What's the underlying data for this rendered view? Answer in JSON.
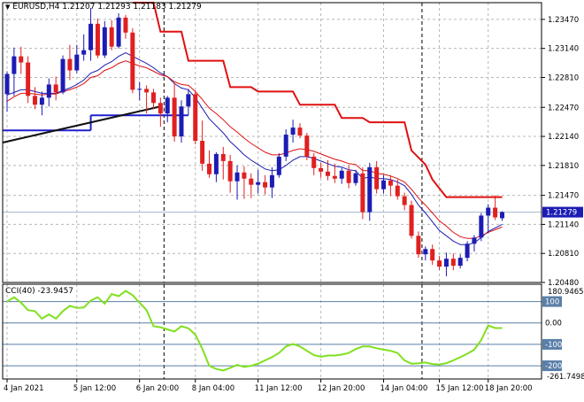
{
  "header": {
    "symbol": "EURUSD,H4",
    "ohlc": [
      "1.21207",
      "1.21293",
      "1.21183",
      "1.21279"
    ]
  },
  "price_axis": {
    "ticks": [
      "1.23470",
      "1.23140",
      "1.22810",
      "1.22470",
      "1.22140",
      "1.21810",
      "1.21470",
      "1.21140",
      "1.20810",
      "1.20480"
    ],
    "current_price": "1.21279"
  },
  "cci_panel": {
    "title": "CCI(40) -23.9457",
    "scale_max": "180.9465",
    "scale_min": "-261.7498",
    "levels": [
      "100",
      "0.00",
      "-100",
      "-200"
    ]
  },
  "time_axis": {
    "labels": [
      "4 Jan 2021",
      "5 Jan 12:00",
      "6 Jan 20:00",
      "8 Jan 04:00",
      "11 Jan 12:00",
      "12 Jan 20:00",
      "14 Jan 04:00",
      "15 Jan 12:00",
      "18 Jan 20:00"
    ]
  },
  "colors": {
    "bull": "#1c1cb4",
    "bear": "#e02020",
    "channel": "#e01010",
    "ma_fast": "#e01010",
    "ma_slow": "#1c1cb4",
    "trendline": "#101010",
    "support": "#2020d0",
    "cci": "#80e020",
    "grid": "#b8b8b8",
    "price_tag": "#1c1cb4"
  },
  "chart_data": {
    "type": "candlestick",
    "series_name": "EURUSD,H4",
    "ylim": [
      1.2048,
      1.2366
    ],
    "candles": [
      [
        1.2262,
        1.2288,
        1.2242,
        1.2285
      ],
      [
        1.2285,
        1.2315,
        1.226,
        1.2305
      ],
      [
        1.2305,
        1.2316,
        1.2285,
        1.2298
      ],
      [
        1.2298,
        1.2305,
        1.2252,
        1.226
      ],
      [
        1.226,
        1.227,
        1.2245,
        1.225
      ],
      [
        1.225,
        1.2265,
        1.2238,
        1.2258
      ],
      [
        1.2258,
        1.228,
        1.2248,
        1.2273
      ],
      [
        1.2273,
        1.2282,
        1.2255,
        1.2264
      ],
      [
        1.2264,
        1.2306,
        1.2262,
        1.2302
      ],
      [
        1.2302,
        1.2318,
        1.2278,
        1.2289
      ],
      [
        1.2289,
        1.2318,
        1.2286,
        1.2307
      ],
      [
        1.2307,
        1.233,
        1.23,
        1.2312
      ],
      [
        1.2312,
        1.236,
        1.23,
        1.2342
      ],
      [
        1.2342,
        1.2348,
        1.2303,
        1.2306
      ],
      [
        1.2306,
        1.2345,
        1.2303,
        1.2338
      ],
      [
        1.2338,
        1.2346,
        1.2312,
        1.2316
      ],
      [
        1.2316,
        1.2354,
        1.2314,
        1.2349
      ],
      [
        1.2349,
        1.2352,
        1.2325,
        1.2332
      ],
      [
        1.2332,
        1.2337,
        1.2263,
        1.2267
      ],
      [
        1.2267,
        1.2276,
        1.2255,
        1.2268
      ],
      [
        1.2268,
        1.2272,
        1.224,
        1.2264
      ],
      [
        1.2264,
        1.2268,
        1.2245,
        1.2252
      ],
      [
        1.2252,
        1.2258,
        1.2225,
        1.224
      ],
      [
        1.224,
        1.226,
        1.223,
        1.2258
      ],
      [
        1.2258,
        1.2275,
        1.2208,
        1.2214
      ],
      [
        1.2214,
        1.2255,
        1.2207,
        1.2248
      ],
      [
        1.2248,
        1.2268,
        1.2238,
        1.2262
      ],
      [
        1.2262,
        1.2266,
        1.2205,
        1.2209
      ],
      [
        1.2209,
        1.2232,
        1.2175,
        1.2183
      ],
      [
        1.2183,
        1.2198,
        1.2167,
        1.2171
      ],
      [
        1.2171,
        1.2196,
        1.2162,
        1.2194
      ],
      [
        1.2194,
        1.2202,
        1.2165,
        1.2186
      ],
      [
        1.2186,
        1.2193,
        1.215,
        1.2163
      ],
      [
        1.2163,
        1.2181,
        1.2142,
        1.2173
      ],
      [
        1.2173,
        1.218,
        1.2143,
        1.2166
      ],
      [
        1.2166,
        1.2172,
        1.2144,
        1.2159
      ],
      [
        1.2159,
        1.2176,
        1.2149,
        1.2162
      ],
      [
        1.2162,
        1.217,
        1.2148,
        1.2156
      ],
      [
        1.2156,
        1.2179,
        1.2144,
        1.217
      ],
      [
        1.217,
        1.2195,
        1.2167,
        1.2191
      ],
      [
        1.2191,
        1.2222,
        1.2186,
        1.2216
      ],
      [
        1.2216,
        1.2233,
        1.2207,
        1.2224
      ],
      [
        1.2224,
        1.2229,
        1.2212,
        1.2215
      ],
      [
        1.2215,
        1.2218,
        1.2187,
        1.2191
      ],
      [
        1.2191,
        1.2195,
        1.217,
        1.2178
      ],
      [
        1.2178,
        1.2184,
        1.2167,
        1.2174
      ],
      [
        1.2174,
        1.2187,
        1.2164,
        1.2169
      ],
      [
        1.2169,
        1.2183,
        1.2161,
        1.2166
      ],
      [
        1.2166,
        1.2178,
        1.216,
        1.2175
      ],
      [
        1.2175,
        1.2181,
        1.2155,
        1.2161
      ],
      [
        1.2161,
        1.2176,
        1.2158,
        1.2172
      ],
      [
        1.2172,
        1.2179,
        1.212,
        1.2128
      ],
      [
        1.2128,
        1.2184,
        1.2118,
        1.2179
      ],
      [
        1.2179,
        1.2186,
        1.2149,
        1.2154
      ],
      [
        1.2154,
        1.217,
        1.2149,
        1.2164
      ],
      [
        1.2164,
        1.217,
        1.2146,
        1.2158
      ],
      [
        1.2158,
        1.2165,
        1.2142,
        1.2146
      ],
      [
        1.2146,
        1.215,
        1.213,
        1.2136
      ],
      [
        1.2136,
        1.2141,
        1.2098,
        1.2101
      ],
      [
        1.2101,
        1.2106,
        1.2076,
        1.208
      ],
      [
        1.208,
        1.2089,
        1.2073,
        1.2086
      ],
      [
        1.2086,
        1.2091,
        1.2068,
        1.2073
      ],
      [
        1.2073,
        1.2078,
        1.2062,
        1.2066
      ],
      [
        1.2066,
        1.2082,
        1.2055,
        1.2075
      ],
      [
        1.2075,
        1.2081,
        1.2062,
        1.2067
      ],
      [
        1.2067,
        1.208,
        1.2064,
        1.2076
      ],
      [
        1.2076,
        1.2095,
        1.2072,
        1.2092
      ],
      [
        1.2092,
        1.2102,
        1.2083,
        1.2099
      ],
      [
        1.2099,
        1.2127,
        1.2095,
        1.2124
      ],
      [
        1.2124,
        1.2137,
        1.2104,
        1.2133
      ],
      [
        1.2133,
        1.2147,
        1.2119,
        1.2122
      ],
      [
        1.2121,
        1.2129,
        1.2118,
        1.2128
      ]
    ],
    "ma_fast": [
      1.2254,
      1.2259,
      1.2263,
      1.2263,
      1.2262,
      1.2261,
      1.2262,
      1.2262,
      1.2265,
      1.2267,
      1.227,
      1.2274,
      1.2281,
      1.2283,
      1.2289,
      1.2292,
      1.2297,
      1.23,
      1.2297,
      1.2294,
      1.2292,
      1.2288,
      1.2284,
      1.2282,
      1.2276,
      1.2273,
      1.2272,
      1.2265,
      1.2256,
      1.2246,
      1.224,
      1.2233,
      1.2225,
      1.2219,
      1.2212,
      1.2206,
      1.2201,
      1.2196,
      1.2193,
      1.2193,
      1.2195,
      1.2198,
      1.22,
      1.2199,
      1.2197,
      1.2194,
      1.2191,
      1.2188,
      1.2186,
      1.2183,
      1.2182,
      1.2175,
      1.2175,
      1.2172,
      1.2171,
      1.2169,
      1.2166,
      1.2162,
      1.2154,
      1.2144,
      1.2136,
      1.2127,
      1.2118,
      1.2112,
      1.2105,
      1.21,
      1.2098,
      1.2098,
      1.2101,
      1.2105,
      1.2108,
      1.2111
    ],
    "ma_slow": [
      1.2261,
      1.2264,
      1.2267,
      1.2267,
      1.2265,
      1.2263,
      1.2263,
      1.2263,
      1.2266,
      1.2269,
      1.2273,
      1.2278,
      1.2286,
      1.2289,
      1.2295,
      1.2299,
      1.2305,
      1.2309,
      1.2305,
      1.2301,
      1.2297,
      1.2292,
      1.2286,
      1.2282,
      1.2274,
      1.2269,
      1.2267,
      1.2258,
      1.2246,
      1.2234,
      1.2226,
      1.2218,
      1.2208,
      1.2201,
      1.2193,
      1.2187,
      1.2182,
      1.2177,
      1.2175,
      1.2176,
      1.2181,
      1.2187,
      1.2191,
      1.2191,
      1.2189,
      1.2186,
      1.2183,
      1.218,
      1.2179,
      1.2176,
      1.2175,
      1.2166,
      1.2168,
      1.2166,
      1.2166,
      1.2165,
      1.2162,
      1.2158,
      1.2148,
      1.2136,
      1.2127,
      1.2117,
      1.2107,
      1.2101,
      1.2095,
      1.2091,
      1.2091,
      1.2093,
      1.2099,
      1.2106,
      1.211,
      1.2114
    ],
    "channel": [
      null,
      null,
      null,
      null,
      null,
      null,
      null,
      null,
      null,
      null,
      null,
      null,
      null,
      null,
      null,
      null,
      null,
      null,
      1.2366,
      1.2366,
      1.2366,
      1.2366,
      1.2333,
      1.2333,
      1.2333,
      1.2333,
      1.23,
      1.23,
      1.23,
      1.23,
      1.23,
      1.23,
      1.227,
      1.227,
      1.227,
      1.227,
      1.2265,
      1.2265,
      1.2265,
      1.2265,
      1.2265,
      1.2265,
      1.225,
      1.225,
      1.225,
      1.225,
      1.225,
      1.225,
      1.2235,
      1.2235,
      1.2235,
      1.2235,
      1.223,
      1.223,
      1.223,
      1.223,
      1.223,
      1.223,
      1.2198,
      1.219,
      1.2182,
      1.2165,
      1.2155,
      1.2145,
      1.2145,
      1.2145,
      1.2145,
      1.2145,
      1.2145,
      1.2145,
      1.2145,
      1.2145
    ],
    "support_level": 1.2238,
    "trendline": [
      [
        0,
        1.2207
      ],
      [
        22,
        1.2248
      ]
    ],
    "cci": {
      "ylim": [
        -261.7498,
        180.9465
      ],
      "levels": [
        100,
        0,
        -100,
        -200
      ],
      "values": [
        100,
        120,
        95,
        60,
        55,
        20,
        40,
        20,
        55,
        80,
        70,
        72,
        105,
        120,
        90,
        135,
        125,
        150,
        130,
        95,
        60,
        -15,
        -20,
        -30,
        -40,
        -15,
        -25,
        -55,
        -120,
        -200,
        -215,
        -222,
        -210,
        -196,
        -205,
        -200,
        -190,
        -175,
        -160,
        -140,
        -110,
        -98,
        -110,
        -130,
        -150,
        -158,
        -152,
        -152,
        -148,
        -140,
        -122,
        -110,
        -110,
        -118,
        -125,
        -130,
        -140,
        -175,
        -190,
        -188,
        -185,
        -192,
        -194,
        -188,
        -175,
        -160,
        -144,
        -125,
        -80,
        -12,
        -24,
        -23.9457
      ]
    },
    "period_separators_index": [
      22,
      59
    ],
    "time_labels_index": [
      0,
      10,
      19,
      27,
      36,
      45,
      54,
      62,
      69
    ]
  }
}
